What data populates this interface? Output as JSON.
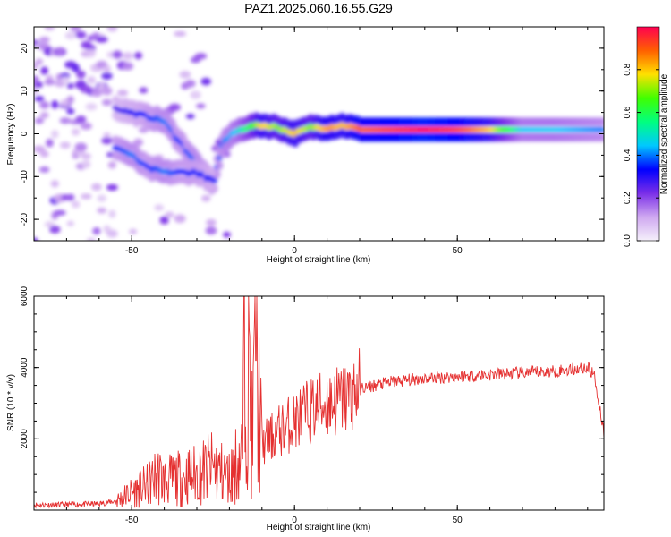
{
  "title": "PAZ1.2025.060.16.55.G29",
  "chart_data": [
    {
      "type": "heatmap",
      "title": "PAZ1.2025.060.16.55.G29",
      "xlabel": "Height of straight line (km)",
      "ylabel": "Frequency (Hz)",
      "xlim": [
        -80,
        95
      ],
      "ylim": [
        -25,
        25
      ],
      "xticks": [
        -50,
        0,
        50
      ],
      "yticks": [
        -20,
        -10,
        0,
        10,
        20
      ],
      "colorbar": {
        "label": "Normalized spectral amplitude",
        "range": [
          0,
          1
        ],
        "ticks": [
          "0.0",
          "0.2",
          "0.4",
          "0.6",
          "0.8"
        ],
        "colormap": [
          "#f5f0fb",
          "#cfa8f0",
          "#7a2ee8",
          "#0000ff",
          "#00c8ff",
          "#00ff80",
          "#40ff00",
          "#ffe000",
          "#ff6000",
          "#ff0050"
        ]
      },
      "ridge": [
        {
          "x": -55,
          "y": 6.0,
          "z": 0.25
        },
        {
          "x": -50,
          "y": 5.0,
          "z": 0.3
        },
        {
          "x": -45,
          "y": 4.0,
          "z": 0.35
        },
        {
          "x": -40,
          "y": 3.0,
          "z": 0.4
        },
        {
          "x": -35,
          "y": -2.0,
          "z": 0.35
        },
        {
          "x": -30,
          "y": -7.0,
          "z": 0.4
        },
        {
          "x": -25,
          "y": -12.0,
          "z": 0.35
        },
        {
          "x": -22,
          "y": -2.0,
          "z": 0.4
        },
        {
          "x": -18,
          "y": 0.5,
          "z": 0.45
        },
        {
          "x": -15,
          "y": 1.5,
          "z": 0.55
        },
        {
          "x": -10,
          "y": 2.0,
          "z": 0.8
        },
        {
          "x": -5,
          "y": 1.5,
          "z": 0.7
        },
        {
          "x": 0,
          "y": 0.0,
          "z": 0.8
        },
        {
          "x": 5,
          "y": 1.5,
          "z": 0.7
        },
        {
          "x": 10,
          "y": 1.5,
          "z": 0.85
        },
        {
          "x": 15,
          "y": 2.0,
          "z": 0.8
        },
        {
          "x": 20,
          "y": 1.0,
          "z": 0.9
        },
        {
          "x": 30,
          "y": 1.0,
          "z": 0.95
        },
        {
          "x": 40,
          "y": 1.0,
          "z": 1.0
        },
        {
          "x": 50,
          "y": 1.0,
          "z": 0.95
        },
        {
          "x": 60,
          "y": 1.0,
          "z": 0.8
        },
        {
          "x": 70,
          "y": 1.0,
          "z": 0.45
        },
        {
          "x": 80,
          "y": 1.0,
          "z": 0.45
        },
        {
          "x": 95,
          "y": 1.0,
          "z": 0.4
        }
      ],
      "branch": [
        {
          "x": -55,
          "y": -3.0,
          "z": 0.35
        },
        {
          "x": -50,
          "y": -5.0,
          "z": 0.4
        },
        {
          "x": -45,
          "y": -8.0,
          "z": 0.35
        },
        {
          "x": -40,
          "y": -9.0,
          "z": 0.4
        },
        {
          "x": -35,
          "y": -9.0,
          "z": 0.35
        },
        {
          "x": -30,
          "y": -9.0,
          "z": 0.35
        },
        {
          "x": -25,
          "y": -11.0,
          "z": 0.3
        }
      ]
    },
    {
      "type": "line",
      "xlabel": "Height of straight line (km)",
      "ylabel": "SNR (10 * v/v)",
      "xlim": [
        -80,
        95
      ],
      "ylim": [
        0,
        6000
      ],
      "xticks": [
        -50,
        0,
        50
      ],
      "yticks": [
        2000,
        4000,
        6000
      ],
      "color": "#e53030",
      "x": [
        -80,
        -70,
        -60,
        -55,
        -50,
        -45,
        -42,
        -40,
        -35,
        -30,
        -25,
        -20,
        -18,
        -16,
        -15,
        -13,
        -12,
        -10,
        -5,
        0,
        5,
        10,
        15,
        20,
        25,
        30,
        40,
        50,
        60,
        70,
        80,
        90,
        92,
        95
      ],
      "y": [
        150,
        150,
        180,
        250,
        500,
        700,
        1000,
        800,
        900,
        1000,
        1200,
        900,
        1300,
        1500,
        6000,
        2000,
        4200,
        1800,
        2200,
        2500,
        2800,
        3000,
        3100,
        3400,
        3500,
        3600,
        3700,
        3750,
        3800,
        3850,
        3900,
        4000,
        3800,
        2200
      ]
    }
  ]
}
